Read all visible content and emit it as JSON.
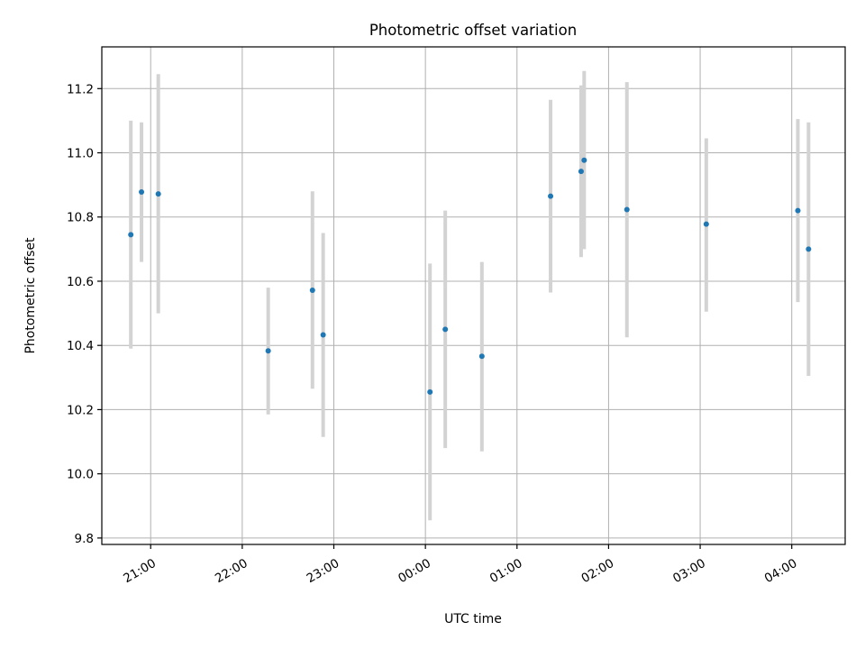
{
  "chart_data": {
    "type": "scatter",
    "title": "Photometric offset variation",
    "xlabel": "UTC time",
    "ylabel": "Photometric offset",
    "grid": true,
    "x_axis": {
      "kind": "time",
      "range": [
        "20:28",
        "04:35"
      ],
      "ticks": [
        "21:00",
        "22:00",
        "23:00",
        "00:00",
        "01:00",
        "02:00",
        "03:00",
        "04:00"
      ]
    },
    "y_axis": {
      "range": [
        9.78,
        11.33
      ],
      "ticks": [
        "9.8",
        "10.0",
        "10.2",
        "10.4",
        "10.6",
        "10.8",
        "11.0",
        "11.2"
      ]
    },
    "colors": {
      "points": "#1f77b4",
      "errorbars": "#d3d3d3",
      "grid": "#b0b0b0"
    },
    "series": [
      {
        "points": [
          {
            "x": "20:47",
            "y": 10.745,
            "low": 10.39,
            "high": 11.1
          },
          {
            "x": "20:54",
            "y": 10.878,
            "low": 10.66,
            "high": 11.095
          },
          {
            "x": "21:05",
            "y": 10.872,
            "low": 10.5,
            "high": 11.245
          },
          {
            "x": "22:17",
            "y": 10.383,
            "low": 10.185,
            "high": 10.58
          },
          {
            "x": "22:46",
            "y": 10.572,
            "low": 10.265,
            "high": 10.88
          },
          {
            "x": "22:53",
            "y": 10.433,
            "low": 10.115,
            "high": 10.75
          },
          {
            "x": "00:03",
            "y": 10.255,
            "low": 9.855,
            "high": 10.655
          },
          {
            "x": "00:13",
            "y": 10.45,
            "low": 10.08,
            "high": 10.82
          },
          {
            "x": "00:37",
            "y": 10.366,
            "low": 10.07,
            "high": 10.66
          },
          {
            "x": "01:22",
            "y": 10.865,
            "low": 10.565,
            "high": 11.165
          },
          {
            "x": "01:42",
            "y": 10.942,
            "low": 10.675,
            "high": 11.21
          },
          {
            "x": "01:44",
            "y": 10.977,
            "low": 10.7,
            "high": 11.255
          },
          {
            "x": "02:12",
            "y": 10.823,
            "low": 10.425,
            "high": 11.22
          },
          {
            "x": "03:04",
            "y": 10.778,
            "low": 10.505,
            "high": 11.045
          },
          {
            "x": "04:04",
            "y": 10.82,
            "low": 10.535,
            "high": 11.105
          },
          {
            "x": "04:11",
            "y": 10.7,
            "low": 10.305,
            "high": 11.095
          }
        ]
      }
    ]
  }
}
